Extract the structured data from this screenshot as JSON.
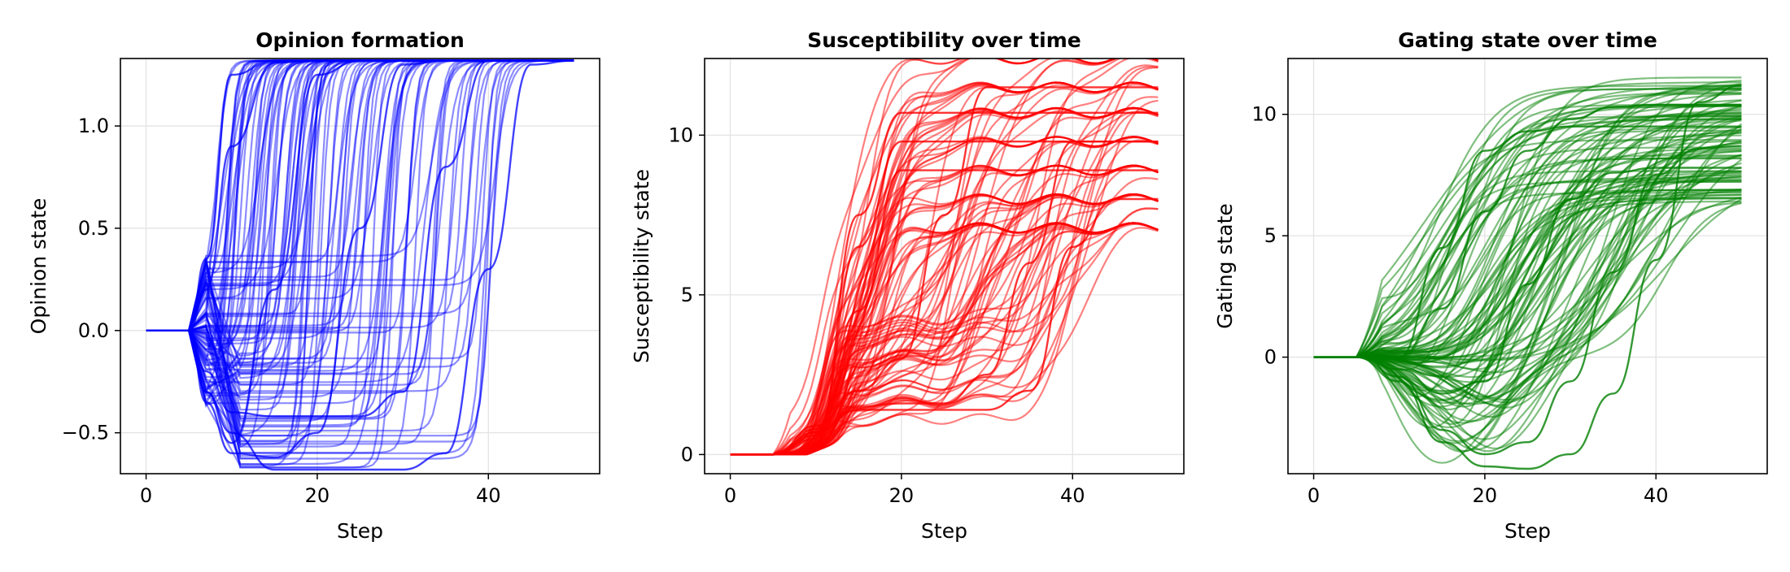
{
  "chart_data": [
    {
      "type": "line",
      "title": "Opinion formation",
      "xlabel": "Step",
      "ylabel": "Opinion state",
      "xlim": [
        -3,
        53
      ],
      "ylim": [
        -0.7,
        1.33
      ],
      "xticks": [
        0,
        20,
        40
      ],
      "xtick_labels": [
        "0",
        "20",
        "40"
      ],
      "yticks": [
        -0.5,
        0.0,
        0.5,
        1.0
      ],
      "ytick_labels": [
        "−0.5",
        "0.0",
        "0.5",
        "1.0"
      ],
      "grid": true,
      "color": "#0000ff",
      "line_opacity": 0.45,
      "x": [
        0,
        5,
        7,
        10,
        15,
        20,
        25,
        30,
        35,
        40,
        45,
        50
      ],
      "trajectory_model": "logistic switch from an early dip state to saturation",
      "series": [
        {
          "values": [
            0,
            0,
            0.35,
            1.25,
            1.32,
            1.32,
            1.32,
            1.32,
            1.32,
            1.32,
            1.32,
            1.32
          ]
        },
        {
          "values": [
            0,
            0,
            0.2,
            0.9,
            1.31,
            1.32,
            1.32,
            1.32,
            1.32,
            1.32,
            1.32,
            1.32
          ]
        },
        {
          "values": [
            0,
            0,
            -0.3,
            -0.55,
            0.2,
            1.25,
            1.32,
            1.32,
            1.32,
            1.32,
            1.32,
            1.32
          ]
        },
        {
          "values": [
            0,
            0,
            -0.35,
            -0.6,
            -0.62,
            -0.5,
            0.5,
            1.3,
            1.32,
            1.32,
            1.32,
            1.32
          ]
        },
        {
          "values": [
            0,
            0,
            -0.2,
            -0.4,
            -0.42,
            -0.42,
            -0.42,
            -0.3,
            0.8,
            1.32,
            1.32,
            1.32
          ]
        },
        {
          "values": [
            0,
            0,
            -0.3,
            -0.5,
            -0.68,
            -0.68,
            -0.68,
            -0.68,
            -0.6,
            0.3,
            1.3,
            1.32
          ]
        }
      ],
      "curve_count": 100
    },
    {
      "type": "line",
      "title": "Susceptibility over time",
      "xlabel": "Step",
      "ylabel": "Susceptibility state",
      "xlim": [
        -3,
        53
      ],
      "ylim": [
        -0.6,
        12.4
      ],
      "xticks": [
        0,
        20,
        40
      ],
      "xtick_labels": [
        "0",
        "20",
        "40"
      ],
      "yticks": [
        0,
        5,
        10
      ],
      "ytick_labels": [
        "0",
        "5",
        "10"
      ],
      "grid": true,
      "color": "#ff0000",
      "line_opacity": 0.5,
      "x": [
        0,
        5,
        10,
        15,
        20,
        25,
        30,
        35,
        40,
        45,
        50
      ],
      "plateau_levels": [
        7.1,
        8.0,
        8.9,
        9.8,
        10.7,
        11.5,
        12.4
      ],
      "series": [
        {
          "values": [
            0,
            0,
            0.6,
            6.5,
            9.8,
            9.8,
            9.8,
            9.8,
            9.8,
            9.8,
            9.8
          ]
        },
        {
          "values": [
            0,
            0,
            0.5,
            7.5,
            10.7,
            10.7,
            10.7,
            10.7,
            10.7,
            10.7,
            10.7
          ]
        },
        {
          "values": [
            0,
            0,
            0.8,
            4.5,
            8.9,
            8.9,
            8.9,
            8.9,
            8.9,
            8.9,
            8.9
          ]
        },
        {
          "values": [
            0,
            0,
            0.9,
            2.0,
            3.0,
            7.5,
            11.5,
            11.5,
            11.5,
            11.5,
            11.5
          ]
        },
        {
          "values": [
            0,
            0,
            0.7,
            1.5,
            1.6,
            1.6,
            2.5,
            6.0,
            9.8,
            9.8,
            9.8
          ]
        },
        {
          "values": [
            0,
            0,
            0.7,
            1.4,
            1.4,
            1.4,
            1.4,
            2.0,
            6.5,
            8.0,
            8.0
          ]
        }
      ],
      "curve_count": 100
    },
    {
      "type": "line",
      "title": "Gating state over time",
      "xlabel": "Step",
      "ylabel": "Gating state",
      "xlim": [
        -3,
        53
      ],
      "ylim": [
        -4.8,
        12.3
      ],
      "xticks": [
        0,
        20,
        40
      ],
      "xtick_labels": [
        "0",
        "20",
        "40"
      ],
      "yticks": [
        0,
        5,
        10
      ],
      "ytick_labels": [
        "0",
        "5",
        "10"
      ],
      "grid": true,
      "color": "#008000",
      "line_opacity": 0.5,
      "x": [
        0,
        5,
        10,
        15,
        20,
        25,
        30,
        35,
        40,
        45,
        50
      ],
      "plateau_levels": [
        7.0,
        7.8,
        8.7,
        9.5,
        10.4,
        11.2,
        11.6
      ],
      "series": [
        {
          "values": [
            0,
            0,
            0,
            4.5,
            8.5,
            9.3,
            9.5,
            9.5,
            9.5,
            9.5,
            9.5
          ]
        },
        {
          "values": [
            0,
            0,
            0,
            2.0,
            6.0,
            8.5,
            9.8,
            10.3,
            10.4,
            10.4,
            10.4
          ]
        },
        {
          "values": [
            0,
            0,
            -0.5,
            -1.5,
            -1.0,
            3.0,
            6.5,
            7.6,
            7.8,
            7.8,
            7.8
          ]
        },
        {
          "values": [
            0,
            0,
            -0.8,
            -3.0,
            -4.0,
            -3.5,
            -1.0,
            3.5,
            7.5,
            8.6,
            8.7
          ]
        },
        {
          "values": [
            0,
            0,
            -1.0,
            -3.5,
            -4.5,
            -4.6,
            -4.0,
            -1.5,
            4.0,
            10.5,
            11.2
          ]
        }
      ],
      "curve_count": 100
    }
  ]
}
